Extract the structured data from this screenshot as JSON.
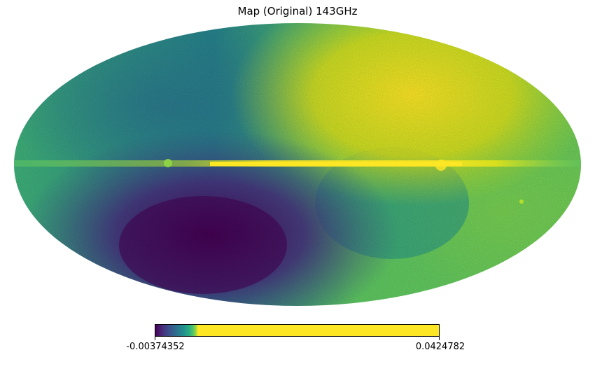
{
  "title": "Map (Original) 143GHz",
  "projection": "mollweide",
  "colormap": "viridis",
  "colorbar": {
    "min_label": "-0.00374352",
    "max_label": "0.0424782",
    "min_value": -0.00374352,
    "max_value": 0.0424782
  },
  "colors": {
    "low": "#440154",
    "mid_low": "#3b528b",
    "mid": "#21918c",
    "mid_high": "#5ec962",
    "high": "#fde725"
  }
}
